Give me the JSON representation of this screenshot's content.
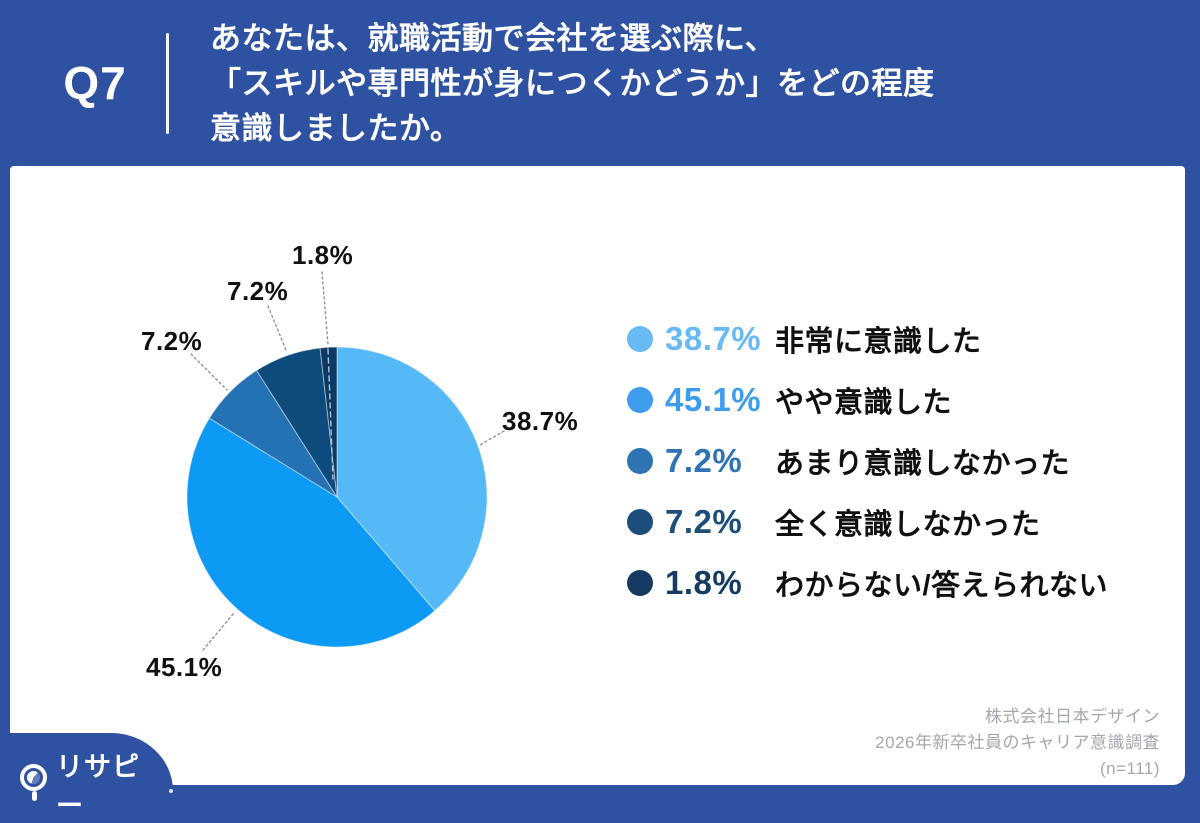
{
  "header": {
    "question_number": "Q7",
    "title_lines": [
      "あなたは、就職活動で会社を選ぶ際に、",
      "「スキルや専門性が身につくかどうか」をどの程度",
      "意識しましたか。"
    ]
  },
  "chart_data": {
    "type": "pie",
    "title": "あなたは、就職活動で会社を選ぶ際に、「スキルや専門性が身につくかどうか」をどの程度意識しましたか。",
    "categories": [
      "非常に意識した",
      "やや意識した",
      "あまり意識しなかった",
      "全く意識しなかった",
      "わからない/答えられない"
    ],
    "values": [
      38.7,
      45.1,
      7.2,
      7.2,
      1.8
    ],
    "unit": "%",
    "colors": [
      "#55B9F8",
      "#0D9AF4",
      "#2472B4",
      "#0D4B7C",
      "#0D3A64"
    ],
    "start_angle": "12-oclock",
    "direction": "clockwise",
    "legend_position": "right",
    "data_labels": [
      "38.7%",
      "45.1%",
      "7.2%",
      "7.2%",
      "1.8%"
    ]
  },
  "legend": {
    "items": [
      {
        "percent": "38.7%",
        "label": "非常に意識した",
        "color": "#68BAF4"
      },
      {
        "percent": "45.1%",
        "label": "やや意識した",
        "color": "#3E9CEC"
      },
      {
        "percent": "7.2%",
        "label": "あまり意識しなかった",
        "color": "#2E73B2"
      },
      {
        "percent": "7.2%",
        "label": "全く意識しなかった",
        "color": "#1D4E7B"
      },
      {
        "percent": "1.8%",
        "label": "わからない/答えられない",
        "color": "#153B62"
      }
    ]
  },
  "footer": {
    "source_lines": [
      "株式会社日本デザイン",
      "2026年新卒社員のキャリア意識調査",
      "(n=111)"
    ],
    "logo_text": "リサピー"
  },
  "colors": {
    "frame_blue": "#2E51A1",
    "card_bg": "#FFFFFF",
    "title_text": "#FFFFFF",
    "pie_label_text": "#111111",
    "footer_text": "#A2A6AD",
    "leader_line": "#8F949B"
  }
}
